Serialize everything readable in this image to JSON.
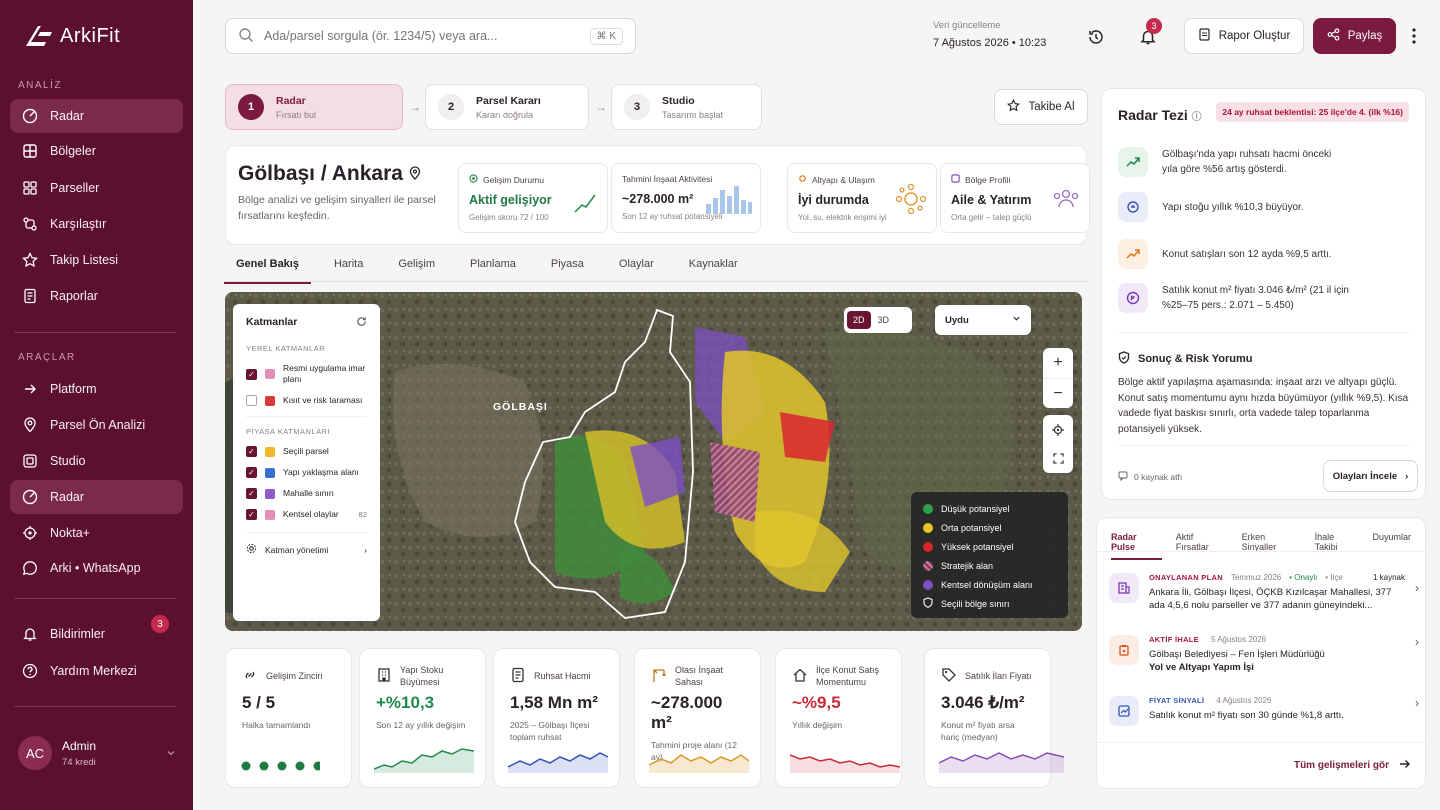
{
  "app": {
    "brand": "ArkiFit"
  },
  "sidebar": {
    "section_analysis": "ANALİZ",
    "analysis_items": [
      {
        "label": "Radar"
      },
      {
        "label": "Bölgeler"
      },
      {
        "label": "Parseller"
      },
      {
        "label": "Karşılaştır"
      },
      {
        "label": "Takip Listesi"
      },
      {
        "label": "Raporlar"
      }
    ],
    "section_tools": "ARAÇLAR",
    "tool_items": [
      {
        "label": "Platform"
      },
      {
        "label": "Parsel Ön Analizi"
      },
      {
        "label": "Studio"
      },
      {
        "label": "Radar"
      },
      {
        "label": "Nokta+"
      },
      {
        "label": "Arki • WhatsApp"
      }
    ],
    "notifications": {
      "label": "Bildirimler",
      "count": "3"
    },
    "help": "Yardım Merkezi",
    "user": {
      "initials": "AC",
      "name": "Admin",
      "credits": "74 kredi"
    }
  },
  "topbar": {
    "search_placeholder": "Ada/parsel sorgula (ör. 1234/5) veya ara...",
    "shortcut": "⌘ K",
    "update_label": "Veri güncelleme",
    "update_date": "7 Ağustos 2026  •  10:23",
    "bell_count": "3",
    "report_button": "Rapor Oluştur",
    "share_button": "Paylaş"
  },
  "steps": [
    {
      "num": "1",
      "title": "Radar",
      "sub": "Fırsatı bul"
    },
    {
      "num": "2",
      "title": "Parsel Kararı",
      "sub": "Kararı doğrula"
    },
    {
      "num": "3",
      "title": "Studio",
      "sub": "Tasarımı başlat"
    }
  ],
  "follow_button": "Takibe Al",
  "region": {
    "title": "Gölbaşı / Ankara",
    "subtitle": "Bölge analizi ve gelişim sinyalleri ile parsel fırsatlarını keşfedin.",
    "cards": [
      {
        "head": "Gelişim Durumu",
        "value": "Aktif gelişiyor",
        "foot": "Gelişim skoru 72 / 100"
      },
      {
        "head": "Tahmini İnşaat Aktivitesi",
        "value": "~278.000 m²",
        "foot": "Son 12 ay ruhsat potansiyeli"
      },
      {
        "head": "Altyapı & Ulaşım",
        "value": "İyi durumda",
        "foot": "Yol, su, elektrik erişimi iyi"
      },
      {
        "head": "Bölge Profili",
        "value": "Aile & Yatırım",
        "foot": "Orta gelir – talep güçlü"
      }
    ]
  },
  "tabs": [
    "Genel Bakış",
    "Harita",
    "Gelişim",
    "Planlama",
    "Piyasa",
    "Olaylar",
    "Kaynaklar"
  ],
  "map": {
    "layers_title": "Katmanlar",
    "local_group": "YEREL KATMANLAR",
    "local_layers": [
      {
        "label": "Resmi uygulama imar planı",
        "checked": true,
        "color": "#e48fb8"
      },
      {
        "label": "Kısıt ve risk taraması",
        "checked": false,
        "color": "#d83a3a"
      }
    ],
    "market_group": "PİYASA KATMANLARI",
    "market_layers": [
      {
        "label": "Seçili parsel",
        "checked": true,
        "color": "#f1b82d"
      },
      {
        "label": "Yapı yaklaşma alanı",
        "checked": true,
        "color": "#3a6fd0"
      },
      {
        "label": "Mahalle sınırı",
        "checked": true,
        "color": "#8c5cc7"
      },
      {
        "label": "Kentsel olaylar",
        "checked": true,
        "color": "#e48fb8",
        "count": "82"
      }
    ],
    "manage": "Katman yönetimi",
    "view_2d": "2D",
    "view_3d": "3D",
    "basemap": "Uydu",
    "place_label": "GÖLBAŞI",
    "legend": [
      {
        "label": "Düşük potansiyel",
        "color": "#2f9e4f"
      },
      {
        "label": "Orta potansiyel",
        "color": "#e8c22b"
      },
      {
        "label": "Yüksek potansiyel",
        "color": "#d8262f"
      },
      {
        "label": "Stratejik alan",
        "color": "#d67aa5"
      },
      {
        "label": "Kentsel dönüşüm alanı",
        "color": "#7d4fc4"
      },
      {
        "label": "Seçili bölge sınırı",
        "color": "#ffffff"
      }
    ]
  },
  "kpis": [
    {
      "head": "Gelişim Zinciri",
      "value": "5 / 5",
      "sub": "Halka tamamlandı",
      "color": "#1f7a44"
    },
    {
      "head": "Yapı Stoku Büyümesi",
      "value": "+%10,3",
      "sub": "Son 12 ay yıllık değişim",
      "color": "#1f8a4c"
    },
    {
      "head": "Ruhsat Hacmi",
      "value": "1,58 Mn m²",
      "sub": "2025 – Gölbaşı İlçesi toplam ruhsat",
      "color": "#3656b8"
    },
    {
      "head": "Olası İnşaat Sahası",
      "value": "~278.000 m²",
      "sub": "Tahmini proje alanı (12 ay)",
      "color": "#d99a2c"
    },
    {
      "head": "İlçe Konut Satış Momentumu",
      "value": "~%9,5",
      "sub": "Yıllık değişim",
      "color": "#c82a3a"
    },
    {
      "head": "Satılık İlan Fiyatı",
      "value": "3.046 ₺/m²",
      "sub": "Konut m² fiyatı arsa hariç (medyan)",
      "color": "#8a4ab4"
    }
  ],
  "thesis": {
    "title": "Radar Tezi",
    "badge": "24 ay ruhsat beklentisi: 25 ilçe'de 4. (ilk %16)",
    "items": [
      {
        "text": "Gölbaşı'nda yapı ruhsatı hacmi önceki yıla göre %56 artış gösterdi.",
        "icon": "trend-up-icon",
        "color": "#1f8a4c",
        "bg": "#e6f4ea"
      },
      {
        "text": "Yapı stoğu yıllık %10,3 büyüyor.",
        "icon": "building-icon",
        "color": "#3656b8",
        "bg": "#e8edf9"
      },
      {
        "text": "Konut satışları son 12 ayda %9,5 arttı.",
        "icon": "trend-up-icon",
        "color": "#d97a1a",
        "bg": "#fdf0e2"
      },
      {
        "text": "Satılık konut m² fiyatı 3.046 ₺/m² (21 il için %25–75 pers.: 2.071 – 5.450)",
        "icon": "price-icon",
        "color": "#7a3ab4",
        "bg": "#f1e8f8"
      }
    ],
    "risk_title": "Sonuç & Risk Yorumu",
    "risk_text": "Bölge aktif yapılaşma aşamasında: inşaat arzı ve altyapı güçlü. Konut satış momentumu aynı hızda büyümüyor (yıllık %9,5). Kısa vadede fiyat baskısı sınırlı, orta vadede talep toparlanma potansiyeli yüksek.",
    "sources": "0 kaynak atfı",
    "events_button": "Olayları İncele"
  },
  "pulse": {
    "tabs": [
      "Radar Pulse",
      "Aktif Fırsatlar",
      "Erken Sinyaller",
      "İhale Takibi",
      "Duyumlar"
    ],
    "events": [
      {
        "tag": "ONAYLANAN PLAN",
        "date": "Temmuz 2026",
        "status": "Onaylı",
        "scope": "İlçe",
        "sources": "1 kaynak",
        "text": "Ankara İli, Gölbaşı İlçesi, ÖÇKB Kızılcaşar Mahallesi, 377 ada 4,5,6 nolu parseller ve 377 adanın güneyindeki...",
        "bold": ""
      },
      {
        "tag": "AKTİF İHALE",
        "date": "5 Ağustos 2026",
        "text": "Gölbaşı Belediyesi – Fen İşleri Müdürlüğü",
        "bold": "Yol ve Altyapı Yapım İşi"
      },
      {
        "tag": "FİYAT SİNYALİ",
        "date": "4 Ağustos 2026",
        "text": "Satılık konut m² fiyatı son 30 günde %1,8 arttı.",
        "bold": ""
      }
    ],
    "all_link": "Tüm gelişmeleri gör"
  }
}
